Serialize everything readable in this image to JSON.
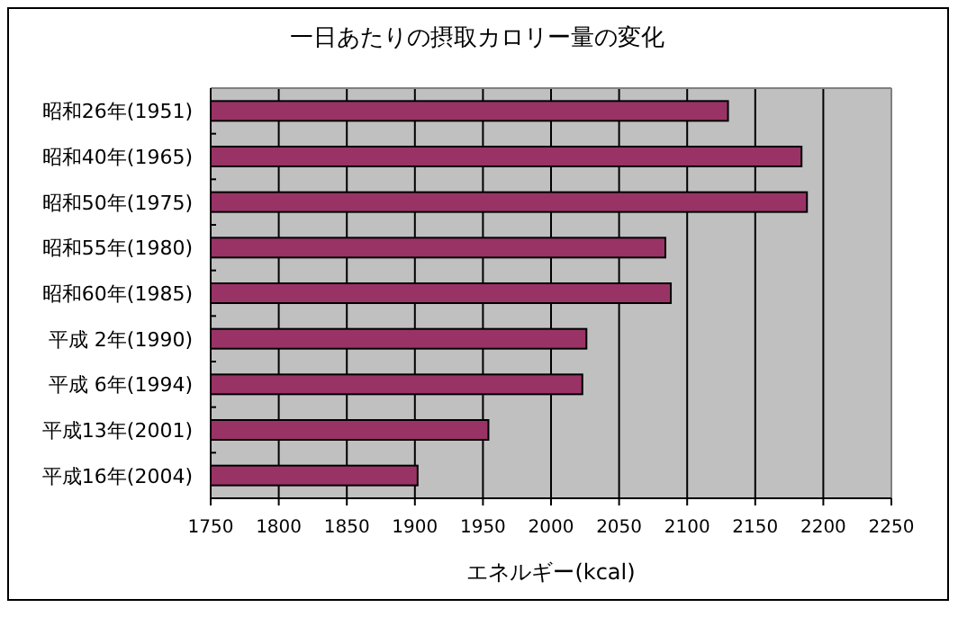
{
  "chart_data": {
    "type": "bar",
    "orientation": "horizontal",
    "title": "一日あたりの摂取カロリー量の変化",
    "xlabel": "エネルギー(kcal)",
    "categories": [
      "昭和26年(1951)",
      "昭和40年(1965)",
      "昭和50年(1975)",
      "昭和55年(1980)",
      "昭和60年(1985)",
      "平成 2年(1990)",
      "平成 6年(1994)",
      "平成13年(2001)",
      "平成16年(2004)"
    ],
    "values": [
      2130,
      2184,
      2188,
      2084,
      2088,
      2026,
      2023,
      1954,
      1902
    ],
    "color": "#993366",
    "xlim": [
      1750,
      2250
    ],
    "xticks": [
      1750,
      1800,
      1850,
      1900,
      1950,
      2000,
      2050,
      2100,
      2150,
      2200,
      2250
    ],
    "grid": "x"
  }
}
